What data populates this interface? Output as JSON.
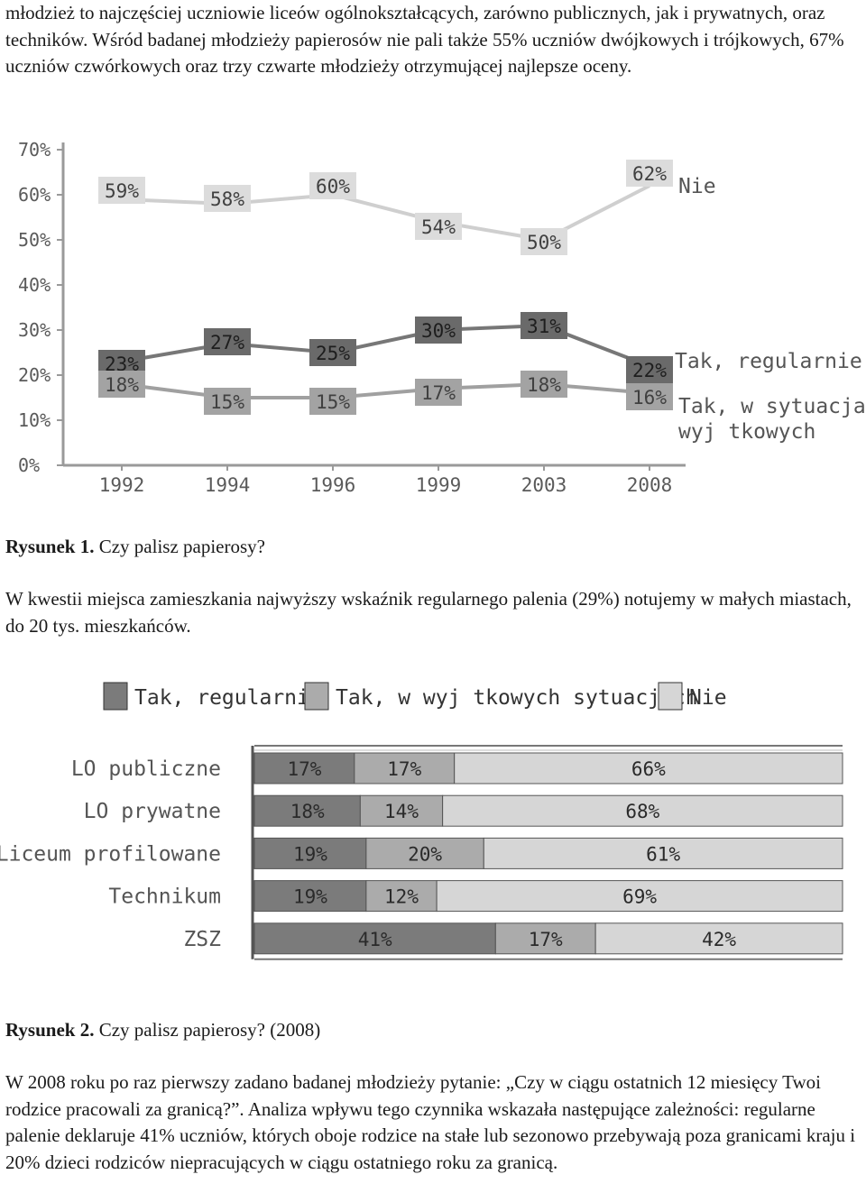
{
  "text": {
    "para1": "młodzież to najczęściej uczniowie liceów ogólnokształcących, zarówno publicznych, jak i prywatnych, oraz techników. Wśród badanej młodzieży papierosów nie pali także 55% uczniów dwójkowych i trójkowych, 67% uczniów czwórkowych oraz trzy czwarte młodzieży otrzymującej najlepsze oceny.",
    "fig1_label": "Rysunek 1.",
    "fig1_title": "Czy palisz papierosy?",
    "para2": "W kwestii miejsca zamieszkania najwyższy wskaźnik regularnego palenia (29%) notujemy w małych miastach, do 20 tys. mieszkańców.",
    "fig2_label": "Rysunek 2.",
    "fig2_title": "Czy palisz papierosy? (2008)",
    "para3": "W 2008 roku po raz pierwszy zadano badanej młodzieży pytanie: „Czy w ciągu ostatnich 12 miesięcy Twoi rodzice pracowali za granicą?”. Analiza wpływu tego czynnika wskazała następujące zależności: regularne palenie deklaruje 41% uczniów, których oboje rodzice na stałe lub sezonowo przebywają poza granicami kraju i 20% dzieci rodziców niepracujących w ciągu ostatniego roku za granicą."
  },
  "chart_data": [
    {
      "type": "line",
      "x": [
        "1992",
        "1994",
        "1996",
        "1999",
        "2003",
        "2008"
      ],
      "yticks": [
        "0%",
        "10%",
        "20%",
        "30%",
        "40%",
        "50%",
        "60%",
        "70%"
      ],
      "ylim": [
        0,
        70
      ],
      "series": [
        {
          "name": "Nie",
          "values": [
            59,
            58,
            60,
            54,
            50,
            62
          ],
          "line_color": "#cfcfcf",
          "box_color": "#dcdcdc"
        },
        {
          "name": "Tak, regularnie",
          "values": [
            23,
            27,
            25,
            30,
            31,
            22
          ],
          "line_color": "#777777",
          "box_color": "#6a6a6a"
        },
        {
          "name": "Tak, w sytuacjach wyj tkowych",
          "values": [
            18,
            15,
            15,
            17,
            18,
            16
          ],
          "line_color": "#a0a0a0",
          "box_color": "#a3a3a3"
        }
      ],
      "data_labels": {
        "Nie": [
          "59%",
          "58%",
          "60%",
          "54%",
          "50%",
          "62%"
        ],
        "Tak, regularnie": [
          "23%",
          "27%",
          "25%",
          "30%",
          "31%",
          "22%"
        ],
        "Tak, w sytuacjach wyj tkowych": [
          "18%",
          "15%",
          "15%",
          "17%",
          "18%",
          "16%"
        ]
      },
      "series_labels": [
        "Nie",
        "Tak, regularnie",
        "Tak, w sytuacjach",
        "wyj tkowych"
      ]
    },
    {
      "type": "bar",
      "stacked": true,
      "orientation": "horizontal",
      "categories": [
        "LO publiczne",
        "LO prywatne",
        "Liceum profilowane",
        "Technikum",
        "ZSZ"
      ],
      "series": [
        {
          "name": "Tak, regularnie",
          "values": [
            17,
            18,
            19,
            19,
            41
          ],
          "color": "#7b7b7b"
        },
        {
          "name": "Tak, w wyj tkowych sytuacjach",
          "values": [
            17,
            14,
            20,
            12,
            17
          ],
          "color": "#ababab"
        },
        {
          "name": "Nie",
          "values": [
            66,
            68,
            61,
            69,
            42
          ],
          "color": "#d6d6d6"
        }
      ],
      "data_labels": [
        [
          "17%",
          "17%",
          "66%"
        ],
        [
          "18%",
          "14%",
          "68%"
        ],
        [
          "19%",
          "20%",
          "61%"
        ],
        [
          "19%",
          "12%",
          "69%"
        ],
        [
          "41%",
          "17%",
          "42%"
        ]
      ],
      "legend_position": "top"
    }
  ]
}
